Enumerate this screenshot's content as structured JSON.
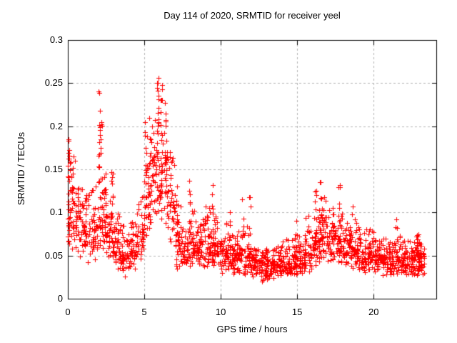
{
  "page": {
    "background": "#ffffff"
  },
  "chart_data": {
    "type": "scatter",
    "title": "Day 114 of 2020, SRMTID for receiver yeel",
    "xlabel": "GPS time / hours",
    "ylabel": "SRMTID / TECUs",
    "xlim": [
      0,
      24.1
    ],
    "ylim": [
      0,
      0.3
    ],
    "xticks": [
      0,
      5,
      10,
      15,
      20
    ],
    "xtick_labels": [
      "0",
      "5",
      "10",
      "15",
      "20"
    ],
    "yticks": [
      0,
      0.05,
      0.1,
      0.15,
      0.2,
      0.25,
      0.3
    ],
    "ytick_labels": [
      "0",
      "0.05",
      "0.1",
      "0.15",
      "0.2",
      "0.25",
      "0.3"
    ],
    "grid": true,
    "grid_style": "dashed",
    "legend": "none",
    "marker": {
      "shape": "plus",
      "size": 7,
      "color": "#ff0000"
    },
    "colors": {
      "marker": "#ff0000",
      "grid": "#b3b3b3",
      "frame": "#000000",
      "text": "#000000"
    },
    "x_data_end": 23.3,
    "envelope": {
      "description": "binned distribution of SRMTID scatter values read from plot",
      "bin_hours": 0.5,
      "x": [
        0.25,
        0.75,
        1.25,
        1.75,
        2.25,
        2.75,
        3.25,
        3.75,
        4.25,
        4.75,
        5.25,
        5.75,
        6.25,
        6.75,
        7.25,
        7.75,
        8.25,
        8.75,
        9.25,
        9.75,
        10.25,
        10.75,
        11.25,
        11.75,
        12.25,
        12.75,
        13.25,
        13.75,
        14.25,
        14.75,
        15.25,
        15.75,
        16.25,
        16.75,
        17.25,
        17.75,
        18.25,
        18.75,
        19.25,
        19.75,
        20.25,
        20.75,
        21.25,
        21.75,
        22.25,
        22.75,
        23.1
      ],
      "median": [
        0.095,
        0.085,
        0.075,
        0.075,
        0.085,
        0.075,
        0.06,
        0.05,
        0.055,
        0.07,
        0.105,
        0.14,
        0.145,
        0.115,
        0.06,
        0.055,
        0.065,
        0.06,
        0.06,
        0.055,
        0.05,
        0.045,
        0.05,
        0.045,
        0.038,
        0.035,
        0.035,
        0.038,
        0.04,
        0.042,
        0.045,
        0.055,
        0.065,
        0.07,
        0.065,
        0.06,
        0.058,
        0.055,
        0.05,
        0.05,
        0.047,
        0.045,
        0.042,
        0.045,
        0.04,
        0.042,
        0.045
      ],
      "min": [
        0.05,
        0.045,
        0.04,
        0.04,
        0.04,
        0.035,
        0.03,
        0.025,
        0.03,
        0.04,
        0.055,
        0.07,
        0.075,
        0.06,
        0.03,
        0.028,
        0.032,
        0.03,
        0.03,
        0.028,
        0.025,
        0.022,
        0.022,
        0.02,
        0.018,
        0.018,
        0.018,
        0.02,
        0.02,
        0.022,
        0.022,
        0.025,
        0.03,
        0.032,
        0.03,
        0.028,
        0.026,
        0.025,
        0.024,
        0.024,
        0.022,
        0.02,
        0.02,
        0.02,
        0.018,
        0.02,
        0.025
      ],
      "max": [
        0.16,
        0.13,
        0.12,
        0.13,
        0.15,
        0.12,
        0.1,
        0.085,
        0.095,
        0.13,
        0.19,
        0.23,
        0.23,
        0.17,
        0.12,
        0.095,
        0.11,
        0.1,
        0.11,
        0.1,
        0.09,
        0.08,
        0.09,
        0.085,
        0.06,
        0.058,
        0.06,
        0.065,
        0.07,
        0.075,
        0.08,
        0.1,
        0.12,
        0.12,
        0.11,
        0.1,
        0.1,
        0.095,
        0.085,
        0.08,
        0.075,
        0.07,
        0.07,
        0.08,
        0.068,
        0.072,
        0.07
      ]
    },
    "spike_columns": [
      {
        "x": 0.1,
        "top": 0.185,
        "bottom": 0.05,
        "n": 16
      },
      {
        "x": 0.35,
        "top": 0.165,
        "bottom": 0.07,
        "n": 8
      },
      {
        "x": 2.05,
        "top": 0.24,
        "bottom": 0.09,
        "n": 14
      },
      {
        "x": 2.18,
        "top": 0.205,
        "bottom": 0.09,
        "n": 8
      },
      {
        "x": 2.42,
        "top": 0.145,
        "bottom": 0.08,
        "n": 6
      },
      {
        "x": 2.88,
        "top": 0.147,
        "bottom": 0.07,
        "n": 7
      },
      {
        "x": 5.1,
        "top": 0.205,
        "bottom": 0.09,
        "n": 10
      },
      {
        "x": 5.35,
        "top": 0.21,
        "bottom": 0.1,
        "n": 8
      },
      {
        "x": 5.9,
        "top": 0.256,
        "bottom": 0.13,
        "n": 16
      },
      {
        "x": 6.1,
        "top": 0.248,
        "bottom": 0.13,
        "n": 12
      },
      {
        "x": 6.35,
        "top": 0.215,
        "bottom": 0.12,
        "n": 8
      },
      {
        "x": 7.15,
        "top": 0.13,
        "bottom": 0.035,
        "n": 10
      },
      {
        "x": 8.0,
        "top": 0.137,
        "bottom": 0.06,
        "n": 8
      },
      {
        "x": 9.45,
        "top": 0.132,
        "bottom": 0.05,
        "n": 7
      },
      {
        "x": 10.6,
        "top": 0.1,
        "bottom": 0.04,
        "n": 5
      },
      {
        "x": 11.45,
        "top": 0.115,
        "bottom": 0.04,
        "n": 6
      },
      {
        "x": 11.9,
        "top": 0.118,
        "bottom": 0.04,
        "n": 6
      },
      {
        "x": 14.9,
        "top": 0.09,
        "bottom": 0.04,
        "n": 4
      },
      {
        "x": 16.2,
        "top": 0.125,
        "bottom": 0.05,
        "n": 6
      },
      {
        "x": 16.55,
        "top": 0.135,
        "bottom": 0.06,
        "n": 7
      },
      {
        "x": 17.75,
        "top": 0.132,
        "bottom": 0.05,
        "n": 6
      },
      {
        "x": 18.6,
        "top": 0.107,
        "bottom": 0.04,
        "n": 4
      },
      {
        "x": 21.5,
        "top": 0.092,
        "bottom": 0.03,
        "n": 5
      },
      {
        "x": 22.9,
        "top": 0.075,
        "bottom": 0.03,
        "n": 4
      }
    ],
    "points_per_bin": 42,
    "seed": 114
  }
}
